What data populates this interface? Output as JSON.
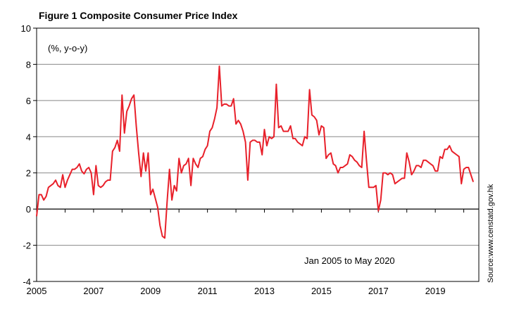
{
  "chart_data": {
    "type": "line",
    "title": "Figure 1 Composite Consumer Price Index",
    "ylabel": "(%, y-o-y)",
    "annotation": "Jan 2005 to May 2020",
    "source": "Source:www.censtatd.gov.hk",
    "x_start": "Jan 2005",
    "x_end": "May 2020",
    "x_frequency": "monthly",
    "x_tick_labels": [
      "2005",
      "2007",
      "2009",
      "2011",
      "2013",
      "2015",
      "2017",
      "2019"
    ],
    "y_tick_labels": [
      "-4",
      "-2",
      "0",
      "2",
      "4",
      "6",
      "8",
      "10"
    ],
    "ylim": [
      -4,
      10
    ],
    "grid": true,
    "line_color": "#e8202a",
    "values": [
      -0.4,
      0.8,
      0.8,
      0.5,
      0.7,
      1.2,
      1.3,
      1.4,
      1.6,
      1.3,
      1.2,
      1.9,
      1.2,
      1.6,
      1.9,
      2.2,
      2.2,
      2.3,
      2.5,
      2.1,
      1.95,
      2.2,
      2.3,
      2.0,
      0.8,
      2.4,
      1.3,
      1.2,
      1.3,
      1.5,
      1.6,
      1.6,
      3.2,
      3.4,
      3.8,
      3.2,
      6.3,
      4.2,
      5.4,
      5.7,
      6.1,
      6.3,
      4.6,
      3.1,
      1.8,
      3.1,
      2.1,
      3.1,
      0.8,
      1.1,
      0.6,
      0.1,
      -0.9,
      -1.5,
      -1.6,
      0.4,
      2.2,
      0.5,
      1.3,
      1.0,
      2.8,
      2.0,
      2.4,
      2.5,
      2.8,
      1.3,
      2.8,
      2.5,
      2.3,
      2.8,
      2.9,
      3.3,
      3.5,
      4.3,
      4.5,
      5.0,
      5.6,
      7.9,
      5.7,
      5.8,
      5.8,
      5.7,
      5.7,
      6.1,
      4.7,
      4.9,
      4.7,
      4.3,
      3.7,
      1.6,
      3.7,
      3.8,
      3.8,
      3.7,
      3.7,
      3.0,
      4.4,
      3.5,
      4.0,
      3.9,
      4.0,
      6.9,
      4.5,
      4.6,
      4.3,
      4.3,
      4.3,
      4.6,
      3.9,
      3.9,
      3.7,
      3.6,
      3.5,
      4.0,
      3.9,
      6.6,
      5.2,
      5.1,
      4.9,
      4.1,
      4.6,
      4.5,
      2.8,
      3.0,
      3.1,
      2.5,
      2.4,
      2.0,
      2.3,
      2.3,
      2.4,
      2.5,
      3.0,
      2.9,
      2.7,
      2.6,
      2.4,
      2.3,
      4.3,
      2.7,
      1.2,
      1.2,
      1.2,
      1.3,
      -0.1,
      0.5,
      2.0,
      2.0,
      1.9,
      2.0,
      1.9,
      1.4,
      1.5,
      1.6,
      1.7,
      1.7,
      3.1,
      2.6,
      1.9,
      2.1,
      2.4,
      2.4,
      2.3,
      2.7,
      2.7,
      2.6,
      2.5,
      2.4,
      2.1,
      2.1,
      2.9,
      2.8,
      3.3,
      3.3,
      3.5,
      3.2,
      3.1,
      3.0,
      2.9,
      1.4,
      2.2,
      2.3,
      2.3,
      1.9,
      1.5
    ]
  }
}
